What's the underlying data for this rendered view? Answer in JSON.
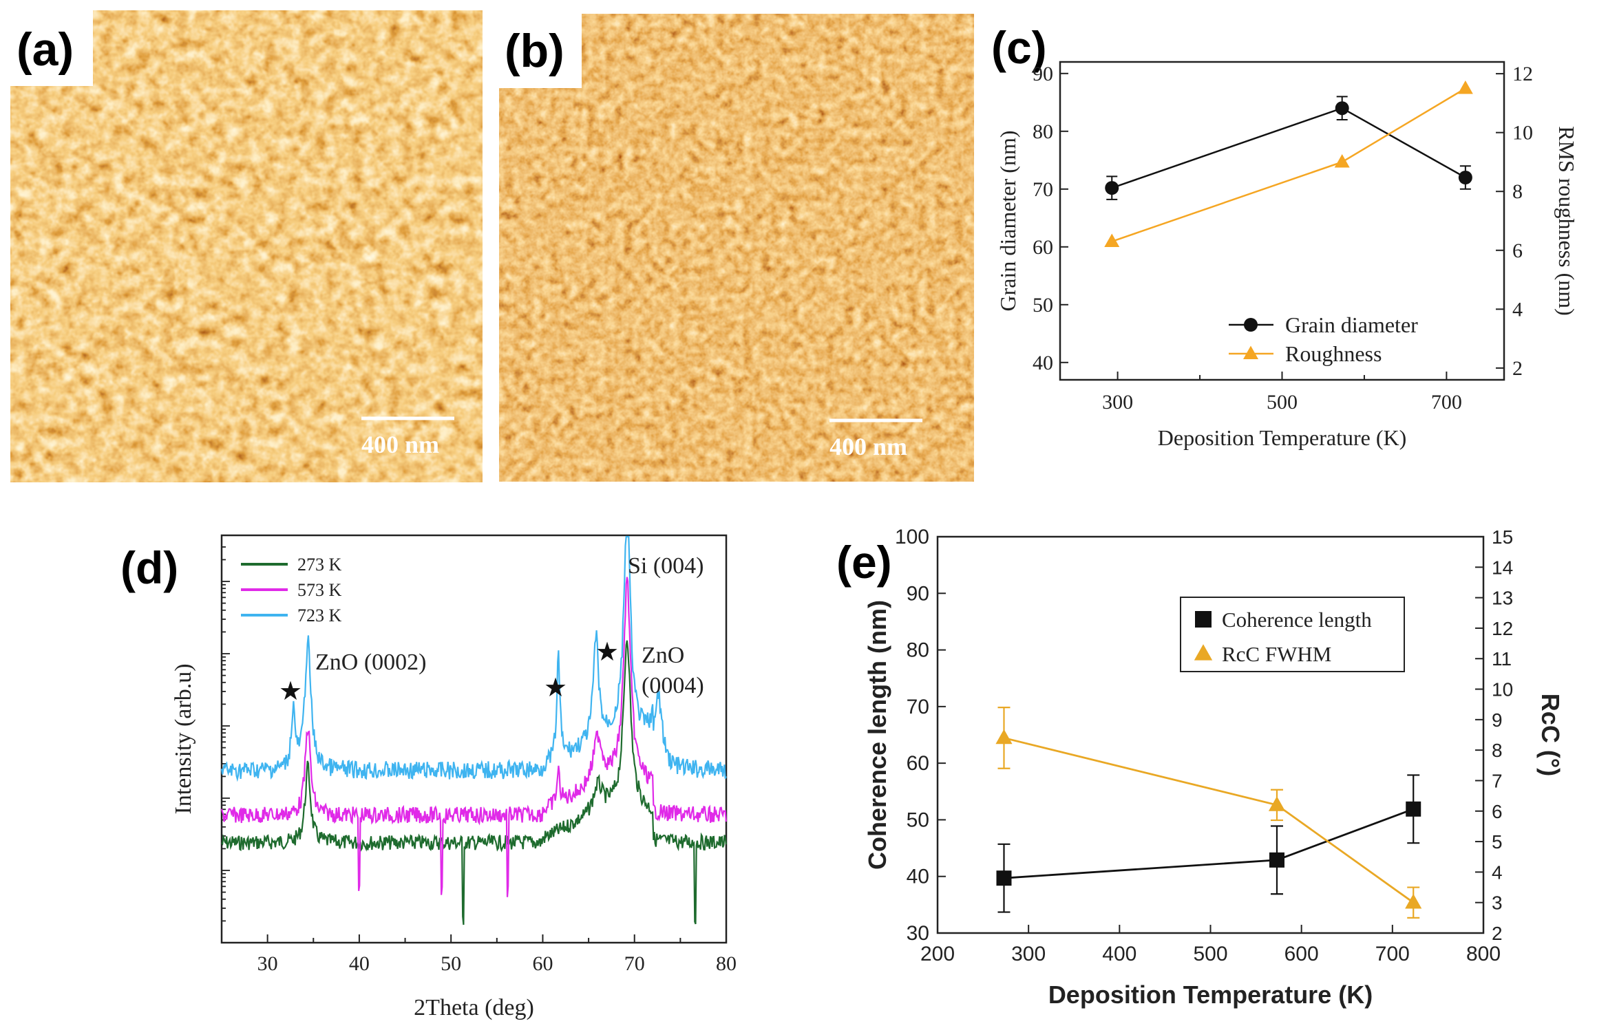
{
  "panels": {
    "a": {
      "label": "(a)",
      "scale_bar": "400 nm"
    },
    "b": {
      "label": "(b)",
      "scale_bar": "400 nm"
    },
    "c": {
      "label": "(c)"
    },
    "d": {
      "label": "(d)"
    },
    "e": {
      "label": "(e)"
    }
  },
  "chart_data": [
    {
      "panel": "c",
      "type": "line",
      "x": [
        293,
        573,
        723
      ],
      "xlabel": "Deposition Temperature (K)",
      "xlim": [
        230,
        770
      ],
      "xticks": [
        300,
        500,
        700
      ],
      "ylabel": "Grain diameter (nm)",
      "ylim": [
        37,
        92
      ],
      "yticks": [
        40,
        50,
        60,
        70,
        80,
        90
      ],
      "y2label": "RMS roughness (nm)",
      "y2lim": [
        1.6,
        12.4
      ],
      "y2ticks": [
        2,
        4,
        6,
        8,
        10,
        12
      ],
      "legend_position": "bottom-right",
      "series": [
        {
          "name": "Grain diameter",
          "axis": "left",
          "marker": "circle",
          "color": "#111111",
          "values": [
            70.2,
            84,
            72
          ],
          "errors": [
            2,
            2,
            2
          ]
        },
        {
          "name": "Roughness",
          "axis": "right",
          "marker": "triangle",
          "color": "#f5a623",
          "values": [
            6.3,
            9.0,
            11.5
          ]
        }
      ]
    },
    {
      "panel": "d",
      "type": "line",
      "xlabel": "2Theta (deg)",
      "ylabel": "Intensity (arb.u)",
      "xlim": [
        25,
        80
      ],
      "xticks": [
        30,
        40,
        50,
        60,
        70,
        80
      ],
      "legend_position": "top-left",
      "series": [
        {
          "name": "273 K",
          "color": "#1e6b2e"
        },
        {
          "name": "573 K",
          "color": "#e02ae8"
        },
        {
          "name": "723 K",
          "color": "#3fb4f0"
        }
      ],
      "annotations": {
        "zno0002": "ZnO (0002)",
        "si004": "Si (004)",
        "zno0004_l1": "ZnO",
        "zno0004_l2": "(0004)",
        "star": "★"
      }
    },
    {
      "panel": "e",
      "type": "line",
      "x": [
        273,
        573,
        723
      ],
      "xlabel": "Deposition Temperature (K)",
      "xlim": [
        200,
        800
      ],
      "xticks": [
        200,
        300,
        400,
        500,
        600,
        700,
        800
      ],
      "ylabel": "Coherence length (nm)",
      "ylim": [
        30,
        100
      ],
      "yticks": [
        30,
        40,
        50,
        60,
        70,
        80,
        90,
        100
      ],
      "y2label": "RcC (°)",
      "y2lim": [
        2,
        15
      ],
      "y2ticks": [
        2,
        3,
        4,
        5,
        6,
        7,
        8,
        9,
        10,
        11,
        12,
        13,
        14,
        15
      ],
      "legend_position": "top-right",
      "series": [
        {
          "name": "Coherence length",
          "axis": "left",
          "marker": "square",
          "color": "#111111",
          "values": [
            39.7,
            42.9,
            51.9
          ],
          "errors": [
            6,
            6,
            6
          ]
        },
        {
          "name": "RcC FWHM",
          "axis": "right",
          "marker": "triangle",
          "color": "#e9a825",
          "values": [
            8.4,
            6.2,
            3.0
          ],
          "errors": [
            1.0,
            0.5,
            0.5
          ]
        }
      ]
    }
  ]
}
